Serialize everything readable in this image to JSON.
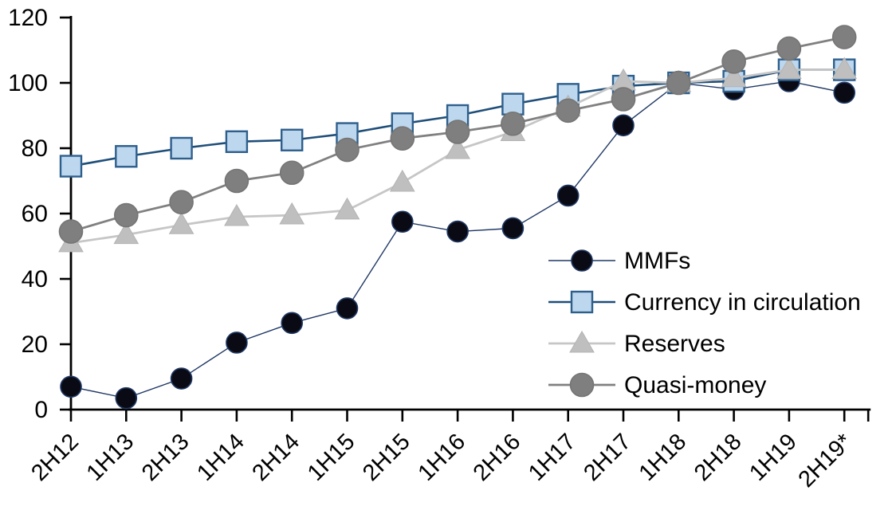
{
  "chart_data": {
    "type": "line",
    "title": "",
    "xlabel": "",
    "ylabel": "",
    "ylim": [
      0,
      120
    ],
    "yticks": [
      0,
      20,
      40,
      60,
      80,
      100,
      120
    ],
    "grid": false,
    "legend_position": "inside-right",
    "axis_color": "#000000",
    "categories": [
      "2H12",
      "1H13",
      "2H13",
      "1H14",
      "2H14",
      "1H15",
      "2H15",
      "1H16",
      "2H16",
      "1H17",
      "2H17",
      "1H18",
      "2H18",
      "1H19",
      "2H19*"
    ],
    "series": [
      {
        "name": "MMFs",
        "marker": "circle",
        "marker_fill": "#0a0a14",
        "marker_stroke": "#1F3864",
        "line_color": "#1F3864",
        "line_width": 1.4,
        "marker_size": 26,
        "values": [
          7,
          3.5,
          9.5,
          20.5,
          26.5,
          31,
          57.5,
          54.5,
          55.5,
          65.5,
          87,
          100,
          98,
          100.5,
          97
        ]
      },
      {
        "name": "Currency in circulation",
        "marker": "square",
        "marker_fill": "#BDD7EE",
        "marker_stroke": "#2E5F8C",
        "line_color": "#1F4E79",
        "line_width": 2.6,
        "marker_size": 26,
        "values": [
          74.5,
          77.5,
          80,
          82,
          82.5,
          84.5,
          87.5,
          90,
          93.5,
          96.5,
          99,
          100,
          100.5,
          104,
          104
        ]
      },
      {
        "name": "Reserves",
        "marker": "triangle",
        "marker_fill": "#BFBFBF",
        "marker_stroke": "#B3B3B3",
        "line_color": "#C6C6C6",
        "line_width": 2.8,
        "marker_size": 30,
        "values": [
          51,
          53.5,
          56.5,
          59,
          59.5,
          61,
          69.5,
          79.5,
          85,
          92.5,
          100.5,
          100,
          101.5,
          104,
          104
        ]
      },
      {
        "name": "Quasi-money",
        "marker": "circle",
        "marker_fill": "#7F7F7F",
        "marker_stroke": "#757575",
        "line_color": "#808080",
        "line_width": 2.8,
        "marker_size": 29,
        "values": [
          54.5,
          59.5,
          63.5,
          70,
          72.5,
          79.5,
          83,
          85,
          87.5,
          91.5,
          95,
          100,
          106.5,
          110.5,
          114
        ]
      }
    ]
  }
}
